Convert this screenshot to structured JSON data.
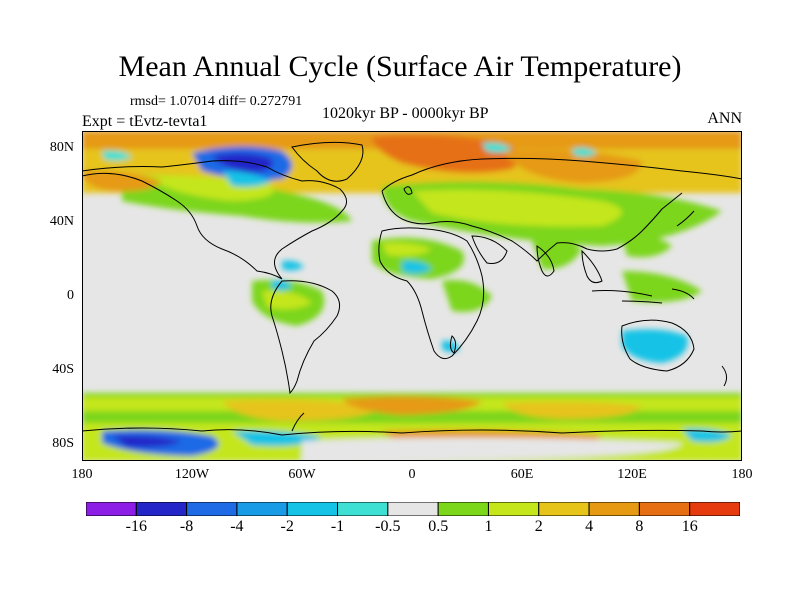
{
  "title": "Mean Annual Cycle (Surface Air Temperature)",
  "stats_line": "rmsd= 1.07014  diff= 0.272791",
  "experiment": "Expt = tEvtz-tevta1",
  "period": "1020kyr BP - 0000kyr BP",
  "season": "ANN",
  "latitude_labels": [
    "80N",
    "40N",
    "0",
    "40S",
    "80S"
  ],
  "longitude_labels": [
    "180",
    "120W",
    "60W",
    "0",
    "60E",
    "120E",
    "180"
  ],
  "colorbar": {
    "labels": [
      "-16",
      "-8",
      "-4",
      "-2",
      "-1",
      "-0.5",
      "0.5",
      "1",
      "2",
      "4",
      "8",
      "16"
    ],
    "colors": [
      "#8d1ee6",
      "#2426c8",
      "#1f6be6",
      "#1a9be6",
      "#14c3e6",
      "#3ee0d4",
      "#e6e6e6",
      "#7cd61a",
      "#c4e61a",
      "#e6c41a",
      "#e69a14",
      "#e66f14",
      "#e63a0f"
    ]
  }
}
